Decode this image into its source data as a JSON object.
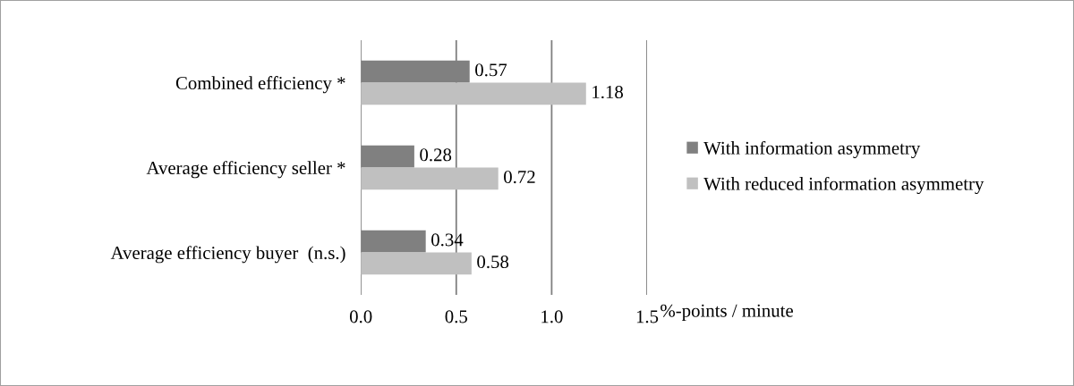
{
  "chart_data": {
    "type": "bar",
    "orientation": "horizontal",
    "xlabel": "%-points / minute",
    "categories": [
      "Combined efficiency *",
      "Average efficiency seller *",
      "Average efficiency buyer  (n.s.)"
    ],
    "series": [
      {
        "name": "With information asymmetry",
        "color": "#808080",
        "values": [
          0.57,
          0.28,
          0.34
        ]
      },
      {
        "name": "With reduced information asymmetry",
        "color": "#c0c0c0",
        "values": [
          1.18,
          0.72,
          0.58
        ]
      }
    ],
    "xlim": [
      0,
      1.5
    ],
    "xticks": [
      {
        "value": 0,
        "label": "0.0"
      },
      {
        "value": 0.5,
        "label": "0.5"
      },
      {
        "value": 1,
        "label": "1.0"
      },
      {
        "value": 1.5,
        "label": "1.5"
      }
    ],
    "grid": "x",
    "legend": "right",
    "data_labels": true
  }
}
